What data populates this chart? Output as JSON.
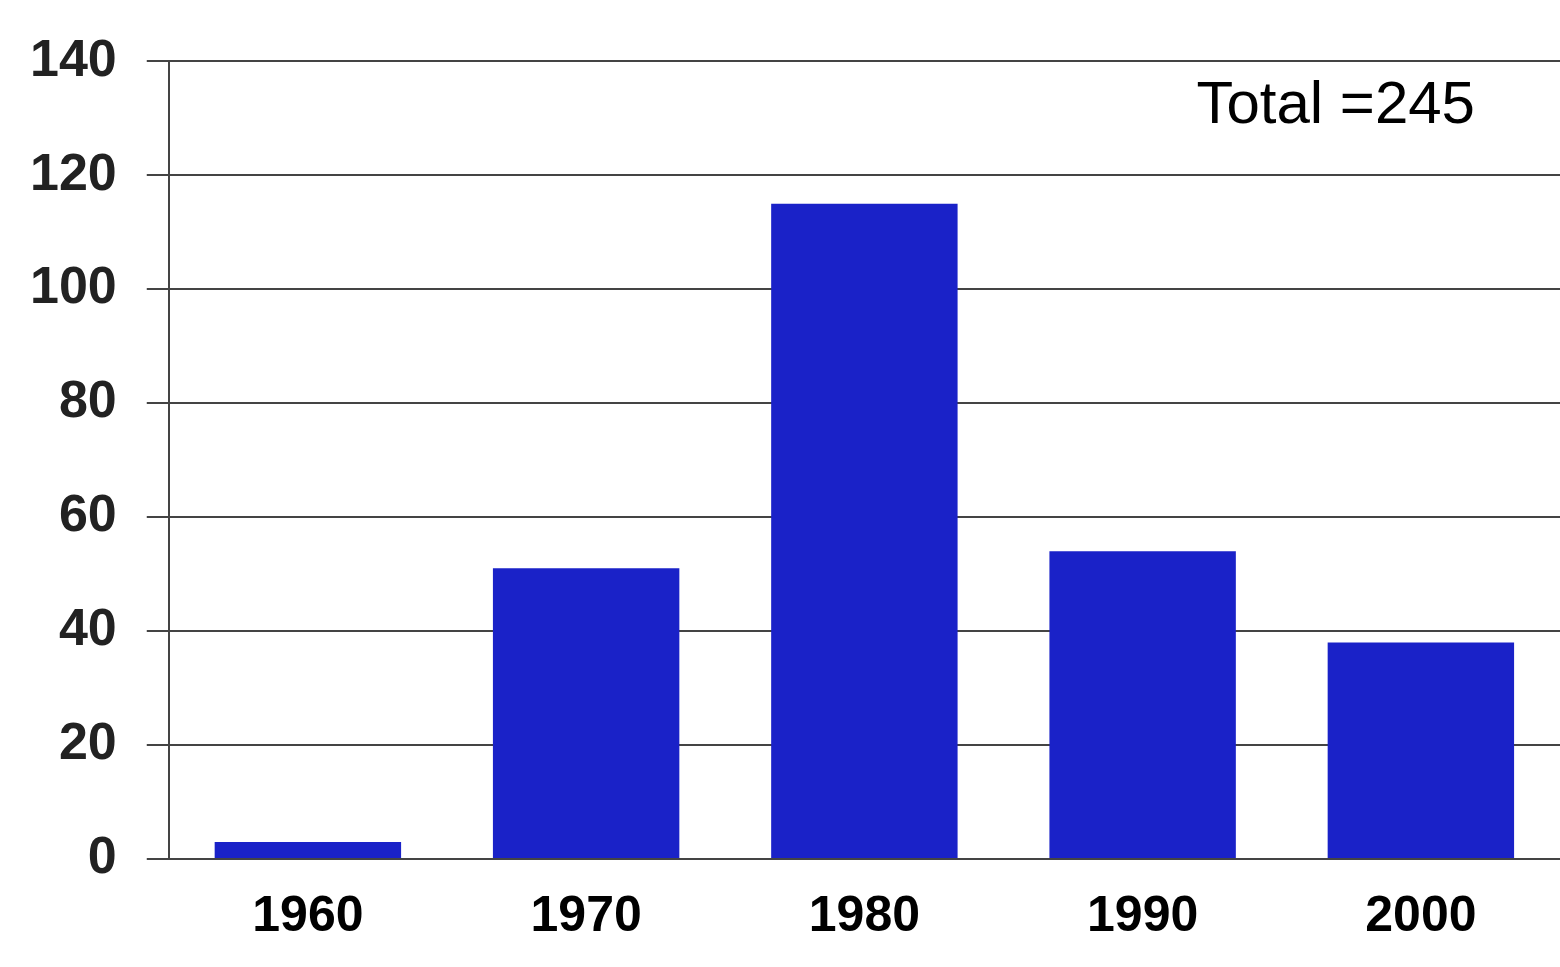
{
  "chart_data": {
    "type": "bar",
    "categories": [
      "1960",
      "1970",
      "1980",
      "1990",
      "2000"
    ],
    "values": [
      3,
      51,
      115,
      54,
      38
    ],
    "color": "#1a22c8",
    "ylim": [
      0,
      140
    ],
    "yticks": [
      0,
      20,
      40,
      60,
      80,
      100,
      120,
      140
    ],
    "grid": "y",
    "annotations": [
      "Total =245"
    ]
  }
}
